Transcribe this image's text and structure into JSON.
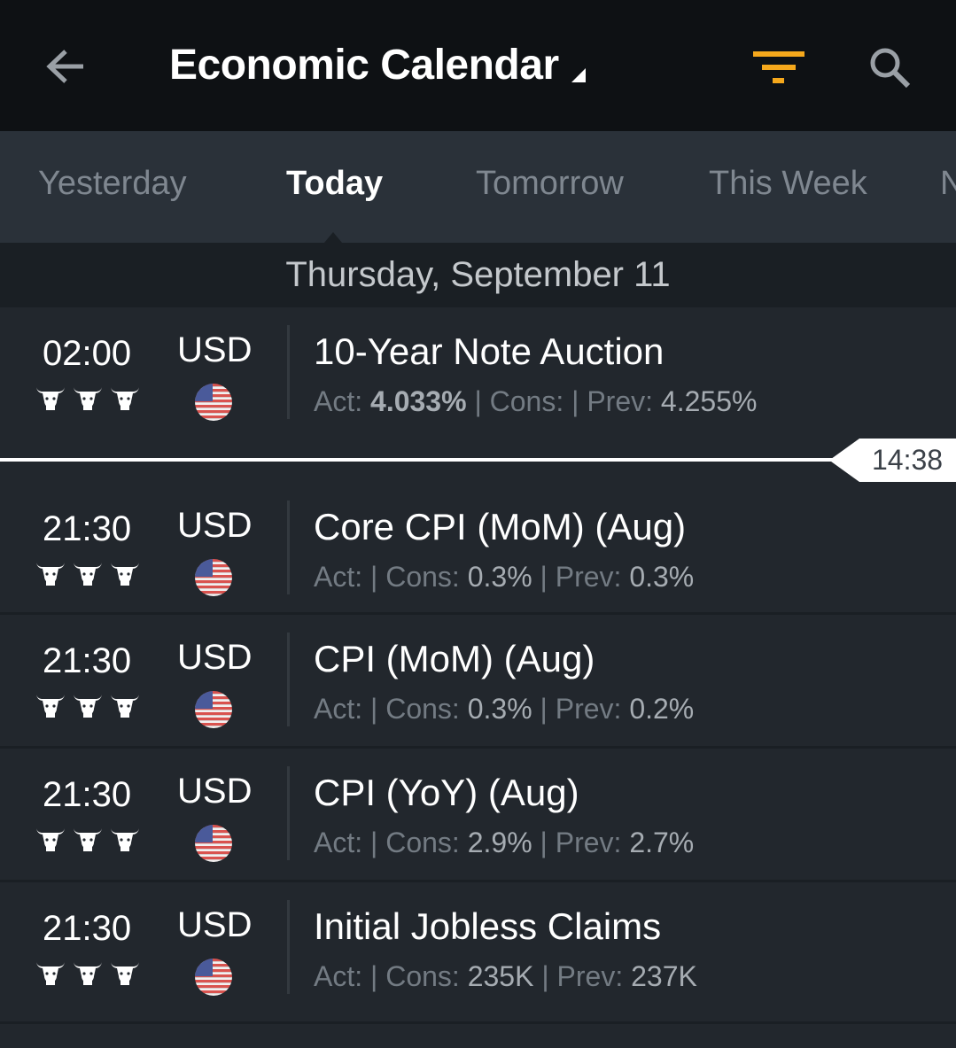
{
  "header": {
    "title": "Economic Calendar",
    "back_icon": "arrow-left-icon",
    "filter_icon": "filter-icon",
    "search_icon": "search-icon",
    "accent": "#f5a81c"
  },
  "tabs": [
    {
      "label": "Yesterday"
    },
    {
      "label": "Today",
      "active": true
    },
    {
      "label": "Tomorrow"
    },
    {
      "label": "This Week"
    },
    {
      "label": "N"
    }
  ],
  "date_header": "Thursday, September 11",
  "now_marker": "14:38",
  "labels": {
    "act": "Act: ",
    "cons": "Cons: ",
    "prev": "Prev: ",
    "sep": " | "
  },
  "events": [
    {
      "time": "02:00",
      "currency": "USD",
      "importance": 3,
      "name": "10-Year Note Auction",
      "act": "4.033%",
      "cons": "",
      "prev": "4.255%"
    },
    {
      "time": "21:30",
      "currency": "USD",
      "importance": 3,
      "name": "Core CPI (MoM) (Aug)",
      "act": "",
      "cons": "0.3%",
      "prev": "0.3%"
    },
    {
      "time": "21:30",
      "currency": "USD",
      "importance": 3,
      "name": "CPI (MoM) (Aug)",
      "act": "",
      "cons": "0.3%",
      "prev": "0.2%"
    },
    {
      "time": "21:30",
      "currency": "USD",
      "importance": 3,
      "name": "CPI (YoY) (Aug)",
      "act": "",
      "cons": "2.9%",
      "prev": "2.7%"
    },
    {
      "time": "21:30",
      "currency": "USD",
      "importance": 3,
      "name": "Initial Jobless Claims",
      "act": "",
      "cons": "235K",
      "prev": "237K"
    }
  ]
}
